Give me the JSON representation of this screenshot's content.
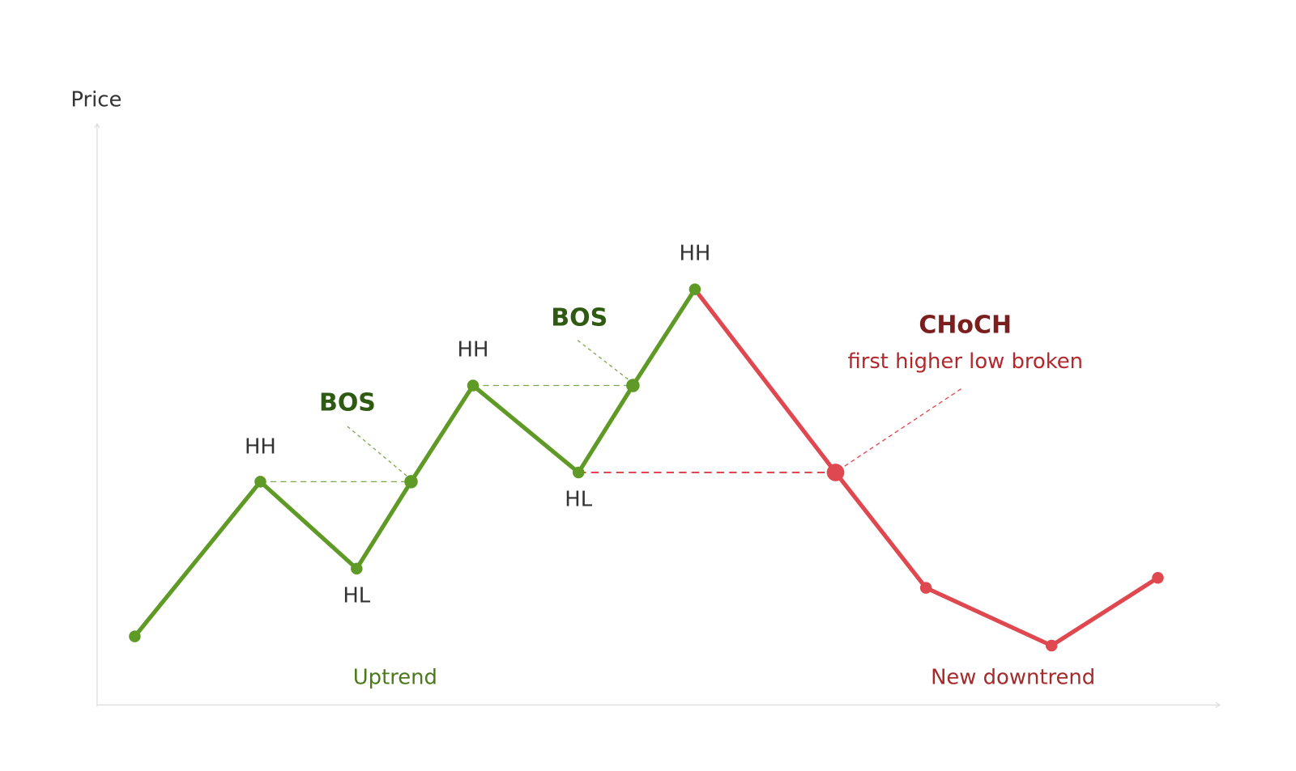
{
  "axis": {
    "y_label": "Price"
  },
  "points": {
    "hh_1": "HH",
    "hl_1": "HL",
    "hh_2": "HH",
    "hl_2": "HL",
    "hh_3": "HH"
  },
  "annotations": {
    "bos_1": "BOS",
    "bos_2": "BOS",
    "choch": {
      "title": "CHoCH",
      "note": "first higher low broken"
    }
  },
  "phases": {
    "uptrend": "Uptrend",
    "downtrend": "New downtrend"
  }
}
